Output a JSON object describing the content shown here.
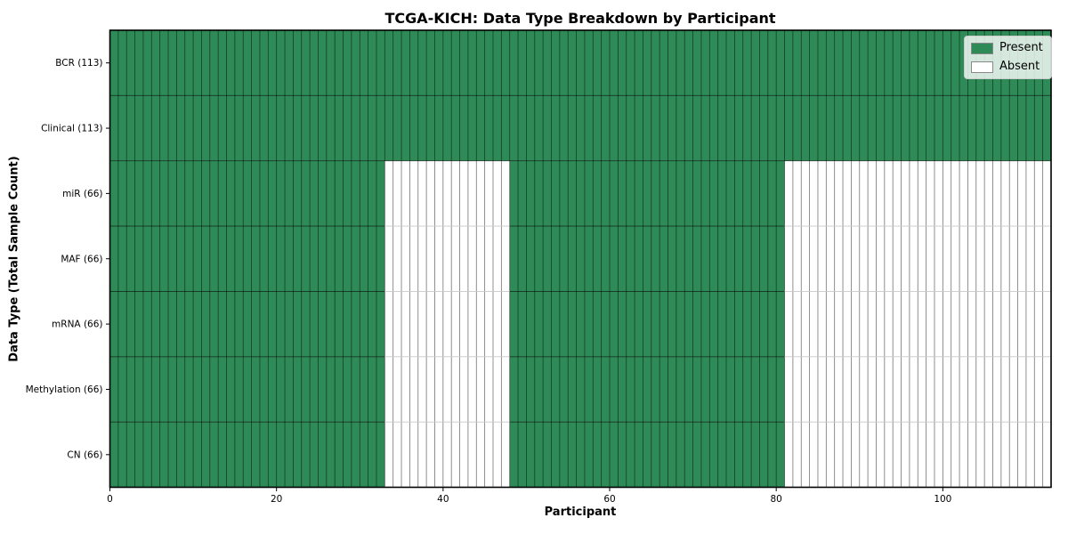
{
  "chart_data": {
    "type": "heatmap",
    "title": "TCGA-KICH: Data Type Breakdown by Participant",
    "xlabel": "Participant",
    "ylabel": "Data Type (Total Sample Count)",
    "n_participants": 113,
    "x_range": [
      0,
      113
    ],
    "x_ticks": [
      0,
      20,
      40,
      60,
      80,
      100
    ],
    "x_tick_labels": [
      "0",
      "20",
      "40",
      "60",
      "80",
      "100"
    ],
    "rows": [
      {
        "label": "BCR (113)",
        "total": 113,
        "present_ranges": [
          [
            0,
            113
          ]
        ]
      },
      {
        "label": "Clinical (113)",
        "total": 113,
        "present_ranges": [
          [
            0,
            113
          ]
        ]
      },
      {
        "label": "miR (66)",
        "total": 66,
        "present_ranges": [
          [
            0,
            33
          ],
          [
            48,
            81
          ]
        ]
      },
      {
        "label": "MAF (66)",
        "total": 66,
        "present_ranges": [
          [
            0,
            33
          ],
          [
            48,
            81
          ]
        ]
      },
      {
        "label": "mRNA (66)",
        "total": 66,
        "present_ranges": [
          [
            0,
            33
          ],
          [
            48,
            81
          ]
        ]
      },
      {
        "label": "Methylation (66)",
        "total": 66,
        "present_ranges": [
          [
            0,
            33
          ],
          [
            48,
            81
          ]
        ]
      },
      {
        "label": "CN (66)",
        "total": 66,
        "present_ranges": [
          [
            0,
            33
          ],
          [
            48,
            81
          ]
        ]
      }
    ],
    "legend": {
      "position": "upper right",
      "entries": [
        {
          "label": "Present",
          "color": "#2e8b57"
        },
        {
          "label": "Absent",
          "color": "#ffffff"
        }
      ]
    },
    "colors": {
      "present": "#2e8b57",
      "absent": "#ffffff",
      "cell_edge": "rgba(0,0,0,0.55)",
      "row_divider_dark": "rgba(0,0,0,0.65)",
      "row_divider_light": "#c8c8c8",
      "frame": "#000000",
      "tick": "#000000"
    }
  }
}
